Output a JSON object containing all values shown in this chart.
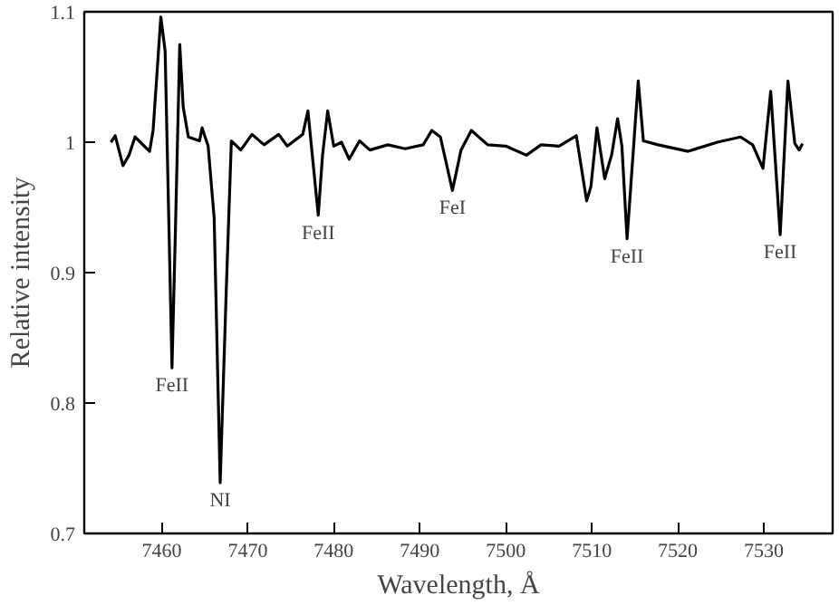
{
  "chart_data": {
    "type": "line",
    "xlabel": "Wavelength, Å",
    "ylabel": "Relative intensity",
    "xlim": [
      7451,
      7538
    ],
    "ylim": [
      0.7,
      1.1
    ],
    "xticks": [
      7460,
      7470,
      7480,
      7490,
      7500,
      7510,
      7520,
      7530
    ],
    "yticks": [
      {
        "value": 0.7,
        "label": "0.7"
      },
      {
        "value": 0.8,
        "label": "0.8"
      },
      {
        "value": 0.9,
        "label": "0.9"
      },
      {
        "value": 1.0,
        "label": "1"
      },
      {
        "value": 1.1,
        "label": "1.1"
      }
    ],
    "grid": false,
    "marker": "none",
    "line_style": "solid",
    "series": [
      {
        "color": "#000000",
        "x": [
          7454.1,
          7454.6,
          7455.5,
          7456.2,
          7456.9,
          7458.6,
          7459.0,
          7459.9,
          7460.4,
          7461.2,
          7461.6,
          7462.1,
          7462.5,
          7463.1,
          7464.4,
          7464.7,
          7465.4,
          7466.1,
          7466.8,
          7467.5,
          7468.1,
          7469.2,
          7470.5,
          7471.9,
          7473.6,
          7474.6,
          7476.4,
          7477.0,
          7478.2,
          7478.7,
          7479.3,
          7480.0,
          7480.9,
          7481.8,
          7483.0,
          7484.2,
          7486.3,
          7488.3,
          7490.4,
          7491.4,
          7492.4,
          7493.8,
          7494.8,
          7496.0,
          7497.9,
          7500.0,
          7502.4,
          7504.1,
          7506.2,
          7508.2,
          7509.4,
          7509.9,
          7510.6,
          7511.5,
          7512.3,
          7513.0,
          7513.5,
          7514.1,
          7515.4,
          7516.0,
          7517.7,
          7521.2,
          7524.6,
          7527.3,
          7528.7,
          7529.9,
          7530.8,
          7531.9,
          7532.8,
          7533.6,
          7534.1,
          7534.5
        ],
        "values": [
          1.0,
          1.005,
          0.982,
          0.99,
          1.004,
          0.993,
          1.009,
          1.096,
          1.07,
          0.827,
          0.933,
          1.075,
          1.027,
          1.004,
          1.001,
          1.011,
          0.997,
          0.942,
          0.739,
          0.885,
          1.001,
          0.994,
          1.006,
          0.998,
          1.006,
          0.997,
          1.006,
          1.024,
          0.944,
          0.99,
          1.024,
          0.997,
          1.0,
          0.987,
          1.001,
          0.994,
          0.998,
          0.995,
          0.998,
          1.009,
          1.004,
          0.963,
          0.994,
          1.009,
          0.998,
          0.997,
          0.99,
          0.998,
          0.997,
          1.005,
          0.955,
          0.966,
          1.011,
          0.972,
          0.99,
          1.018,
          0.997,
          0.926,
          1.047,
          1.001,
          0.998,
          0.993,
          1.0,
          1.004,
          0.998,
          0.98,
          1.039,
          0.929,
          1.047,
          0.999,
          0.994,
          0.999
        ]
      }
    ],
    "annotations": [
      {
        "text": "FeII",
        "x": 7461.2,
        "y": 0.827
      },
      {
        "text": "NI",
        "x": 7466.8,
        "y": 0.739
      },
      {
        "text": "FeII",
        "x": 7478.2,
        "y": 0.944
      },
      {
        "text": "FeI",
        "x": 7493.8,
        "y": 0.963
      },
      {
        "text": "FeII",
        "x": 7514.1,
        "y": 0.926
      },
      {
        "text": "FeII",
        "x": 7531.9,
        "y": 0.929
      }
    ]
  }
}
